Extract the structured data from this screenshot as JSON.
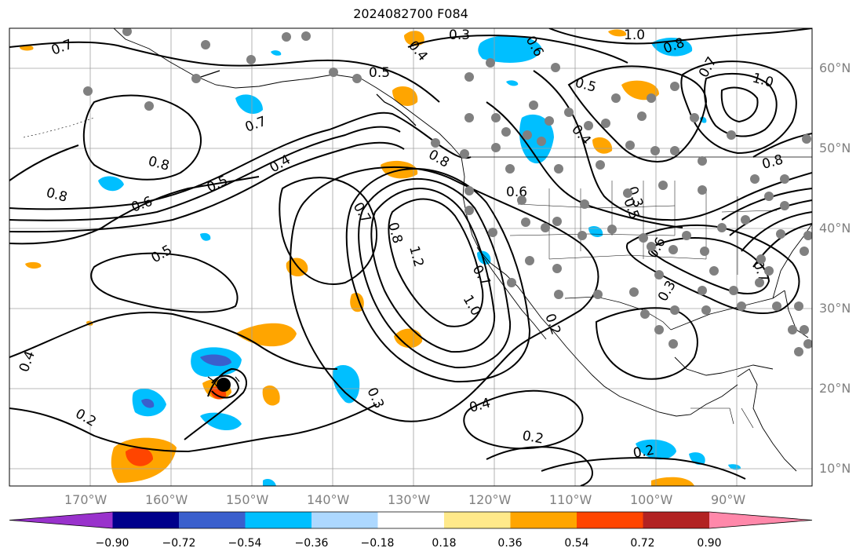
{
  "title": "2024082700 F084",
  "lat_labels": [
    "60°N",
    "50°N",
    "40°N",
    "30°N",
    "20°N",
    "10°N"
  ],
  "lon_labels": [
    "170°W",
    "160°W",
    "150°W",
    "140°W",
    "130°W",
    "120°W",
    "110°W",
    "100°W",
    "90°W"
  ],
  "contour_labels": [
    "0.7",
    "0.3",
    "0.4",
    "1.0",
    "0.8",
    "0.6",
    "0.5",
    "0.5",
    "0.7",
    "1.0",
    "0.7",
    "0.4",
    "0.8",
    "0.8",
    "0.5",
    "0.8",
    "0.6",
    "0.6",
    "0.8",
    "0.4",
    "0.5",
    "0.7",
    "0.8",
    "0.5",
    "1.2",
    "0.7",
    "1.0",
    "0.3",
    "0.6",
    "0.3",
    "0.7",
    "0.4",
    "0.3",
    "0.2",
    "0.4",
    "0.2",
    "0.2",
    "0.2"
  ],
  "colorbar": {
    "colors": [
      "#9932cc",
      "#00008b",
      "#3a5fcd",
      "#00bfff",
      "#add8ff",
      "#ffffff",
      "#ffe98a",
      "#ffa500",
      "#ff4500",
      "#b22222",
      "#ff88aa"
    ],
    "ticks": [
      "−0.90",
      "−0.72",
      "−0.54",
      "−0.36",
      "−0.18",
      "0.18",
      "0.36",
      "0.54",
      "0.72",
      "0.90"
    ]
  },
  "colors": {
    "contour": "#000000",
    "grid": "#a0a0a0",
    "coast": "#000000",
    "dots": "#808080"
  }
}
